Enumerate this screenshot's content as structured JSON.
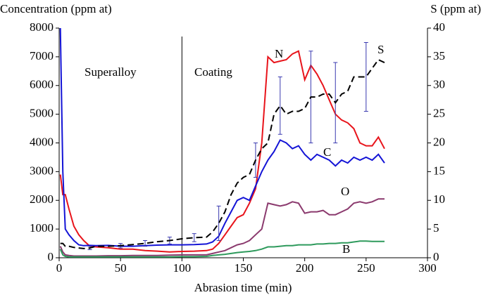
{
  "chart_data": {
    "type": "line",
    "y_label": "Concentration (ppm at)",
    "y2_label": "S (ppm at)",
    "x_label": "Abrasion time (min)",
    "annotations": [
      "Superalloy",
      "Coating",
      "N",
      "C",
      "O",
      "B",
      "S"
    ],
    "divider_x": 100,
    "x": [
      1,
      3,
      5,
      8,
      12,
      16,
      20,
      25,
      30,
      40,
      50,
      60,
      70,
      80,
      90,
      100,
      110,
      120,
      125,
      130,
      135,
      140,
      145,
      150,
      155,
      160,
      165,
      170,
      175,
      180,
      185,
      190,
      195,
      200,
      205,
      210,
      215,
      220,
      225,
      230,
      235,
      240,
      245,
      250,
      255,
      260,
      265
    ],
    "xlim": [
      0,
      300
    ],
    "xticks": [
      0,
      50,
      100,
      150,
      200,
      250,
      300
    ],
    "ylim": [
      0,
      8000
    ],
    "yticks": [
      0,
      1000,
      2000,
      3000,
      4000,
      5000,
      6000,
      7000,
      8000
    ],
    "y2lim": [
      0,
      40
    ],
    "y2ticks": [
      0,
      5,
      10,
      15,
      20,
      25,
      30,
      35,
      40
    ],
    "series": [
      {
        "name": "N",
        "color": "#e8141b",
        "values": [
          2900,
          2200,
          2200,
          1700,
          1100,
          800,
          600,
          400,
          380,
          350,
          300,
          300,
          250,
          230,
          200,
          220,
          230,
          250,
          300,
          500,
          800,
          1100,
          1400,
          1500,
          1900,
          2400,
          4000,
          7000,
          6800,
          6850,
          6900,
          7100,
          7200,
          6200,
          6700,
          6400,
          6000,
          5500,
          5000,
          4800,
          4700,
          4500,
          4000,
          3900,
          3900,
          4200,
          3800
        ]
      },
      {
        "name": "C",
        "color": "#1414d6",
        "values": [
          8000,
          3000,
          1000,
          800,
          600,
          450,
          420,
          430,
          420,
          430,
          400,
          400,
          420,
          440,
          450,
          450,
          460,
          480,
          550,
          750,
          1200,
          1600,
          2000,
          2100,
          2000,
          2500,
          3000,
          3400,
          3700,
          4100,
          4000,
          3800,
          3900,
          3600,
          3400,
          3600,
          3500,
          3400,
          3200,
          3400,
          3300,
          3500,
          3400,
          3500,
          3400,
          3600,
          3300
        ]
      },
      {
        "name": "O",
        "color": "#8b3a6e",
        "values": [
          400,
          200,
          100,
          80,
          60,
          60,
          60,
          60,
          60,
          70,
          70,
          80,
          80,
          80,
          90,
          100,
          100,
          100,
          150,
          200,
          250,
          350,
          450,
          500,
          600,
          800,
          1000,
          1900,
          1850,
          1800,
          1850,
          1950,
          1900,
          1550,
          1600,
          1600,
          1650,
          1500,
          1500,
          1600,
          1700,
          1900,
          1950,
          1900,
          1950,
          2050,
          2050
        ]
      },
      {
        "name": "B",
        "color": "#2e9a5c",
        "values": [
          300,
          100,
          50,
          30,
          30,
          30,
          30,
          30,
          30,
          30,
          30,
          30,
          30,
          30,
          30,
          40,
          40,
          50,
          80,
          100,
          120,
          150,
          180,
          200,
          220,
          250,
          300,
          380,
          380,
          400,
          420,
          420,
          450,
          450,
          450,
          480,
          480,
          500,
          500,
          520,
          520,
          550,
          580,
          580,
          570,
          570,
          570
        ]
      },
      {
        "name": "S",
        "color": "#000000",
        "axis": "y2",
        "dashed": true,
        "values": [
          2.5,
          2.5,
          2,
          2,
          1.8,
          1.7,
          1.6,
          1.7,
          2,
          2,
          2.1,
          2.3,
          2.5,
          2.8,
          3,
          3.3,
          3.5,
          3.6,
          4.5,
          6,
          8,
          11,
          13,
          14,
          14.5,
          17,
          19,
          20,
          25,
          26.5,
          25,
          25.5,
          25.5,
          26,
          28,
          28,
          28.5,
          28.5,
          27,
          28.5,
          29,
          31.5,
          31.5,
          31.5,
          33,
          34.5,
          34
        ],
        "errors": [
          null,
          null,
          null,
          null,
          null,
          null,
          null,
          0.3,
          null,
          null,
          0.4,
          null,
          0.5,
          null,
          0.6,
          null,
          0.7,
          null,
          null,
          3,
          null,
          null,
          null,
          null,
          null,
          3,
          null,
          null,
          null,
          5,
          null,
          null,
          null,
          null,
          8,
          null,
          null,
          null,
          7,
          null,
          null,
          null,
          null,
          6,
          null,
          null,
          null
        ],
        "error_color": "#3a3ab0"
      }
    ]
  }
}
